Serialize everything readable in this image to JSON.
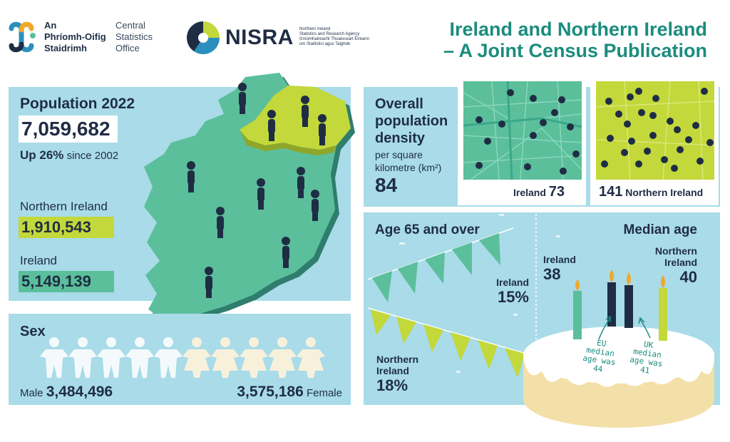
{
  "header": {
    "cso_name_irish_1": "An",
    "cso_name_irish_2": "Phríomh-Oifig",
    "cso_name_irish_3": "Staidrimh",
    "cso_name_english_1": "Central",
    "cso_name_english_2": "Statistics",
    "cso_name_english_3": "Office",
    "nisra_word": "NISRA",
    "nisra_sub_1": "Northern Ireland",
    "nisra_sub_2": "Statistics and Research Agency",
    "nisra_sub_3": "Gníomhaireacht Thuaisceart Éireann",
    "nisra_sub_4": "um Staitisticí agus Taighde",
    "title_line1": "Ireland and Northern Ireland",
    "title_line2": "– A Joint Census Publication",
    "title_color": "#1b8c7d"
  },
  "population": {
    "heading": "Population 2022",
    "total": "7,059,682",
    "growth_bold": "Up 26%",
    "growth_rest": "since 2002",
    "ni_label": "Northern Ireland",
    "ni_value": "1,910,543",
    "ie_label": "Ireland",
    "ie_value": "5,149,139"
  },
  "sex": {
    "heading": "Sex",
    "male_label": "Male",
    "male_value": "3,484,496",
    "female_value": "3,575,186",
    "female_label": "Female"
  },
  "density": {
    "heading_1": "Overall",
    "heading_2": "population",
    "heading_3": "density",
    "sub_1": "per square",
    "sub_2": "kilometre (km²)",
    "overall_value": "84",
    "ie_label": "Ireland",
    "ie_value": "73",
    "ni_value": "141",
    "ni_label": "Northern Ireland"
  },
  "age65": {
    "heading": "Age 65 and over",
    "ie_label": "Ireland",
    "ie_value": "15%",
    "ni_label_1": "Northern",
    "ni_label_2": "Ireland",
    "ni_value": "18%"
  },
  "median": {
    "heading": "Median age",
    "ie_label": "Ireland",
    "ie_value": "38",
    "ni_label_1": "Northern",
    "ni_label_2": "Ireland",
    "ni_value": "40",
    "eu_note_1": "EU",
    "eu_note_2": "median",
    "eu_note_3": "age was",
    "eu_note_4": "44",
    "uk_note_1": "UK",
    "uk_note_2": "median",
    "uk_note_3": "age was",
    "uk_note_4": "41"
  },
  "colors": {
    "panel": "#a9dbe8",
    "navy": "#1f2d44",
    "teal": "#5bbf9c",
    "lime": "#c3d83a"
  },
  "icons": [
    "cso-logo-icon",
    "nisra-logo-icon",
    "ireland-map-icon",
    "person-icon",
    "paper-chain-people-icon",
    "city-map-icon",
    "bunting-icon",
    "birthday-cake-icon",
    "candle-icon"
  ]
}
